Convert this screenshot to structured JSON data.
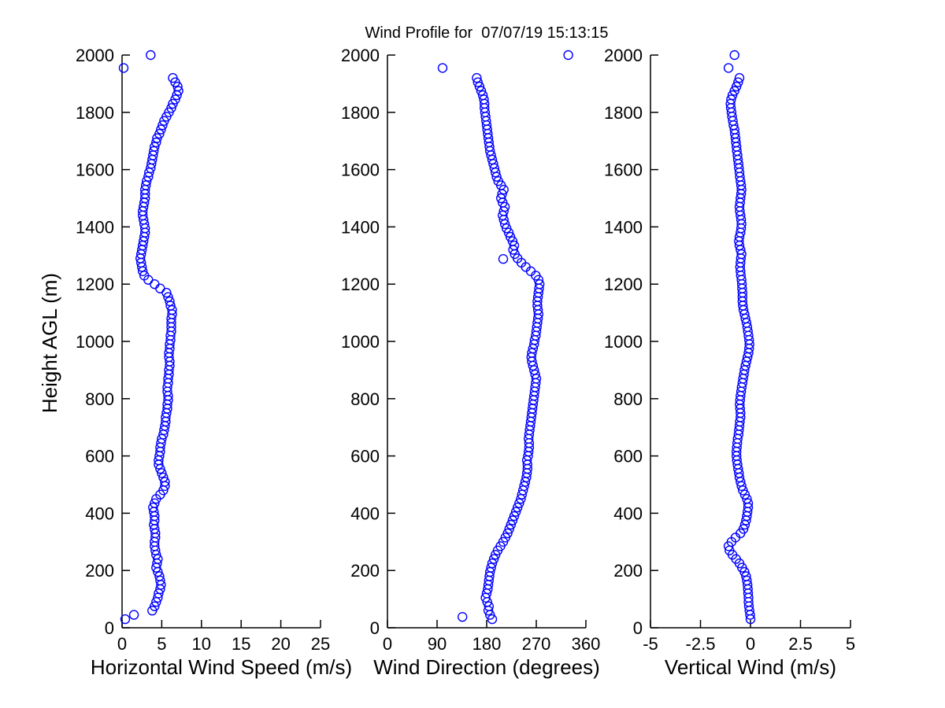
{
  "title": "Wind Profile for  07/07/19 15:13:15",
  "chart_data": {
    "type": "scatter",
    "marker": "o",
    "marker_color": "#0000FF",
    "axis_color": "#000000",
    "background_color": "#FFFFFF",
    "grid": false,
    "legend": null,
    "ylabel": "Height AGL (m)",
    "ylim": [
      0,
      2000
    ],
    "yticks": [
      0,
      200,
      400,
      600,
      800,
      1000,
      1200,
      1400,
      1600,
      1800,
      2000
    ],
    "heights_m": [
      30,
      45,
      60,
      75,
      90,
      105,
      120,
      135,
      150,
      165,
      180,
      195,
      210,
      225,
      240,
      255,
      270,
      285,
      300,
      315,
      330,
      345,
      360,
      375,
      390,
      405,
      420,
      435,
      450,
      465,
      480,
      495,
      510,
      525,
      540,
      555,
      570,
      585,
      600,
      615,
      630,
      645,
      660,
      675,
      690,
      705,
      720,
      735,
      750,
      765,
      780,
      795,
      810,
      825,
      840,
      855,
      870,
      885,
      900,
      915,
      930,
      945,
      960,
      975,
      990,
      1005,
      1020,
      1035,
      1050,
      1065,
      1080,
      1095,
      1110,
      1125,
      1140,
      1155,
      1170,
      1185,
      1200,
      1215,
      1230,
      1245,
      1260,
      1275,
      1290,
      1305,
      1320,
      1335,
      1350,
      1365,
      1380,
      1395,
      1410,
      1425,
      1440,
      1455,
      1470,
      1485,
      1500,
      1515,
      1530,
      1545,
      1560,
      1575,
      1590,
      1605,
      1620,
      1635,
      1650,
      1665,
      1680,
      1695,
      1710,
      1725,
      1740,
      1755,
      1770,
      1785,
      1800,
      1815,
      1830,
      1845,
      1860,
      1875,
      1890,
      1905,
      1920,
      1955,
      2000
    ],
    "panels": [
      {
        "xlabel": "Horizontal Wind Speed (m/s)",
        "xlim": [
          0,
          25
        ],
        "xticks": [
          0,
          5,
          10,
          15,
          20,
          25
        ],
        "values": [
          0.4,
          1.5,
          3.8,
          4.1,
          4.3,
          4.5,
          4.6,
          4.8,
          4.9,
          4.8,
          4.7,
          4.5,
          4.3,
          4.4,
          4.5,
          4.3,
          4.2,
          4.1,
          4.1,
          4.2,
          4.2,
          4.1,
          4.0,
          4.1,
          4.1,
          4.0,
          3.9,
          4.1,
          4.3,
          4.8,
          5.2,
          5.4,
          5.4,
          5.2,
          5.0,
          4.8,
          4.6,
          4.6,
          4.7,
          4.8,
          4.8,
          4.9,
          5.0,
          5.2,
          5.3,
          5.4,
          5.5,
          5.5,
          5.6,
          5.7,
          5.7,
          5.8,
          5.8,
          5.7,
          5.7,
          5.8,
          5.8,
          5.9,
          5.9,
          6.0,
          6.0,
          5.9,
          5.9,
          6.0,
          6.0,
          6.1,
          6.1,
          6.2,
          6.2,
          6.2,
          6.2,
          6.3,
          6.3,
          6.1,
          6.0,
          5.8,
          5.6,
          4.8,
          4.1,
          3.3,
          2.8,
          2.6,
          2.5,
          2.4,
          2.3,
          2.4,
          2.5,
          2.6,
          2.7,
          2.8,
          2.9,
          2.9,
          2.8,
          2.7,
          2.6,
          2.6,
          2.7,
          2.8,
          2.9,
          2.9,
          2.9,
          3.0,
          3.1,
          3.3,
          3.4,
          3.6,
          3.7,
          3.8,
          3.9,
          4.0,
          4.1,
          4.3,
          4.4,
          4.7,
          4.9,
          5.1,
          5.3,
          5.6,
          5.9,
          6.2,
          6.4,
          6.7,
          6.9,
          7.1,
          7.0,
          6.7,
          6.4,
          0.2,
          3.6
        ],
        "extra_points": []
      },
      {
        "xlabel": "Wind Direction (degrees)",
        "xlim": [
          0,
          360
        ],
        "xticks": [
          0,
          90,
          180,
          270,
          360
        ],
        "values": [
          190,
          186,
          183,
          184,
          181,
          178,
          180,
          182,
          183,
          184,
          185,
          186,
          188,
          190,
          193,
          196,
          200,
          205,
          210,
          214,
          218,
          221,
          224,
          227,
          230,
          233,
          236,
          239,
          242,
          244,
          246,
          248,
          250,
          252,
          253,
          254,
          254,
          253,
          255,
          256,
          257,
          257,
          256,
          257,
          258,
          259,
          260,
          261,
          262,
          263,
          264,
          265,
          266,
          267,
          268,
          269,
          270,
          268,
          266,
          264,
          262,
          261,
          262,
          264,
          266,
          267,
          269,
          270,
          271,
          272,
          273,
          274,
          273,
          272,
          272,
          273,
          274,
          275,
          276,
          274,
          269,
          260,
          251,
          243,
          236,
          231,
          228,
          230,
          227,
          223,
          220,
          216,
          213,
          211,
          209,
          211,
          213,
          209,
          206,
          208,
          211,
          206,
          201,
          198,
          196,
          194,
          192,
          190,
          188,
          186,
          185,
          184,
          183,
          182,
          181,
          180,
          179,
          178,
          177,
          176,
          176,
          175,
          173,
          170,
          167,
          164,
          162,
          100,
          328
        ],
        "extra_points": [
          {
            "x": 136,
            "y": 38
          },
          {
            "x": 210,
            "y": 1288
          }
        ]
      },
      {
        "xlabel": "Vertical Wind (m/s)",
        "xlim": [
          -5,
          5
        ],
        "xticks": [
          -5,
          -2.5,
          0,
          2.5,
          5
        ],
        "values": [
          0.0,
          -0.02,
          -0.05,
          -0.08,
          -0.1,
          -0.1,
          -0.12,
          -0.13,
          -0.15,
          -0.18,
          -0.22,
          -0.3,
          -0.42,
          -0.55,
          -0.72,
          -0.9,
          -1.05,
          -1.1,
          -0.95,
          -0.75,
          -0.5,
          -0.35,
          -0.28,
          -0.22,
          -0.18,
          -0.15,
          -0.12,
          -0.12,
          -0.18,
          -0.28,
          -0.38,
          -0.45,
          -0.5,
          -0.55,
          -0.58,
          -0.62,
          -0.65,
          -0.68,
          -0.7,
          -0.7,
          -0.68,
          -0.66,
          -0.64,
          -0.6,
          -0.58,
          -0.55,
          -0.53,
          -0.5,
          -0.5,
          -0.52,
          -0.54,
          -0.52,
          -0.5,
          -0.47,
          -0.44,
          -0.4,
          -0.37,
          -0.33,
          -0.3,
          -0.25,
          -0.2,
          -0.15,
          -0.1,
          -0.07,
          -0.05,
          -0.07,
          -0.1,
          -0.13,
          -0.16,
          -0.2,
          -0.25,
          -0.3,
          -0.35,
          -0.38,
          -0.4,
          -0.4,
          -0.4,
          -0.42,
          -0.43,
          -0.45,
          -0.48,
          -0.5,
          -0.52,
          -0.5,
          -0.48,
          -0.45,
          -0.5,
          -0.55,
          -0.58,
          -0.55,
          -0.5,
          -0.47,
          -0.45,
          -0.47,
          -0.5,
          -0.53,
          -0.55,
          -0.52,
          -0.5,
          -0.47,
          -0.45,
          -0.47,
          -0.5,
          -0.53,
          -0.55,
          -0.58,
          -0.6,
          -0.63,
          -0.65,
          -0.68,
          -0.7,
          -0.73,
          -0.75,
          -0.78,
          -0.8,
          -0.85,
          -0.88,
          -0.92,
          -0.95,
          -0.98,
          -1.0,
          -0.97,
          -0.9,
          -0.8,
          -0.7,
          -0.62,
          -0.55,
          -1.1,
          -0.8
        ],
        "extra_points": []
      }
    ]
  }
}
